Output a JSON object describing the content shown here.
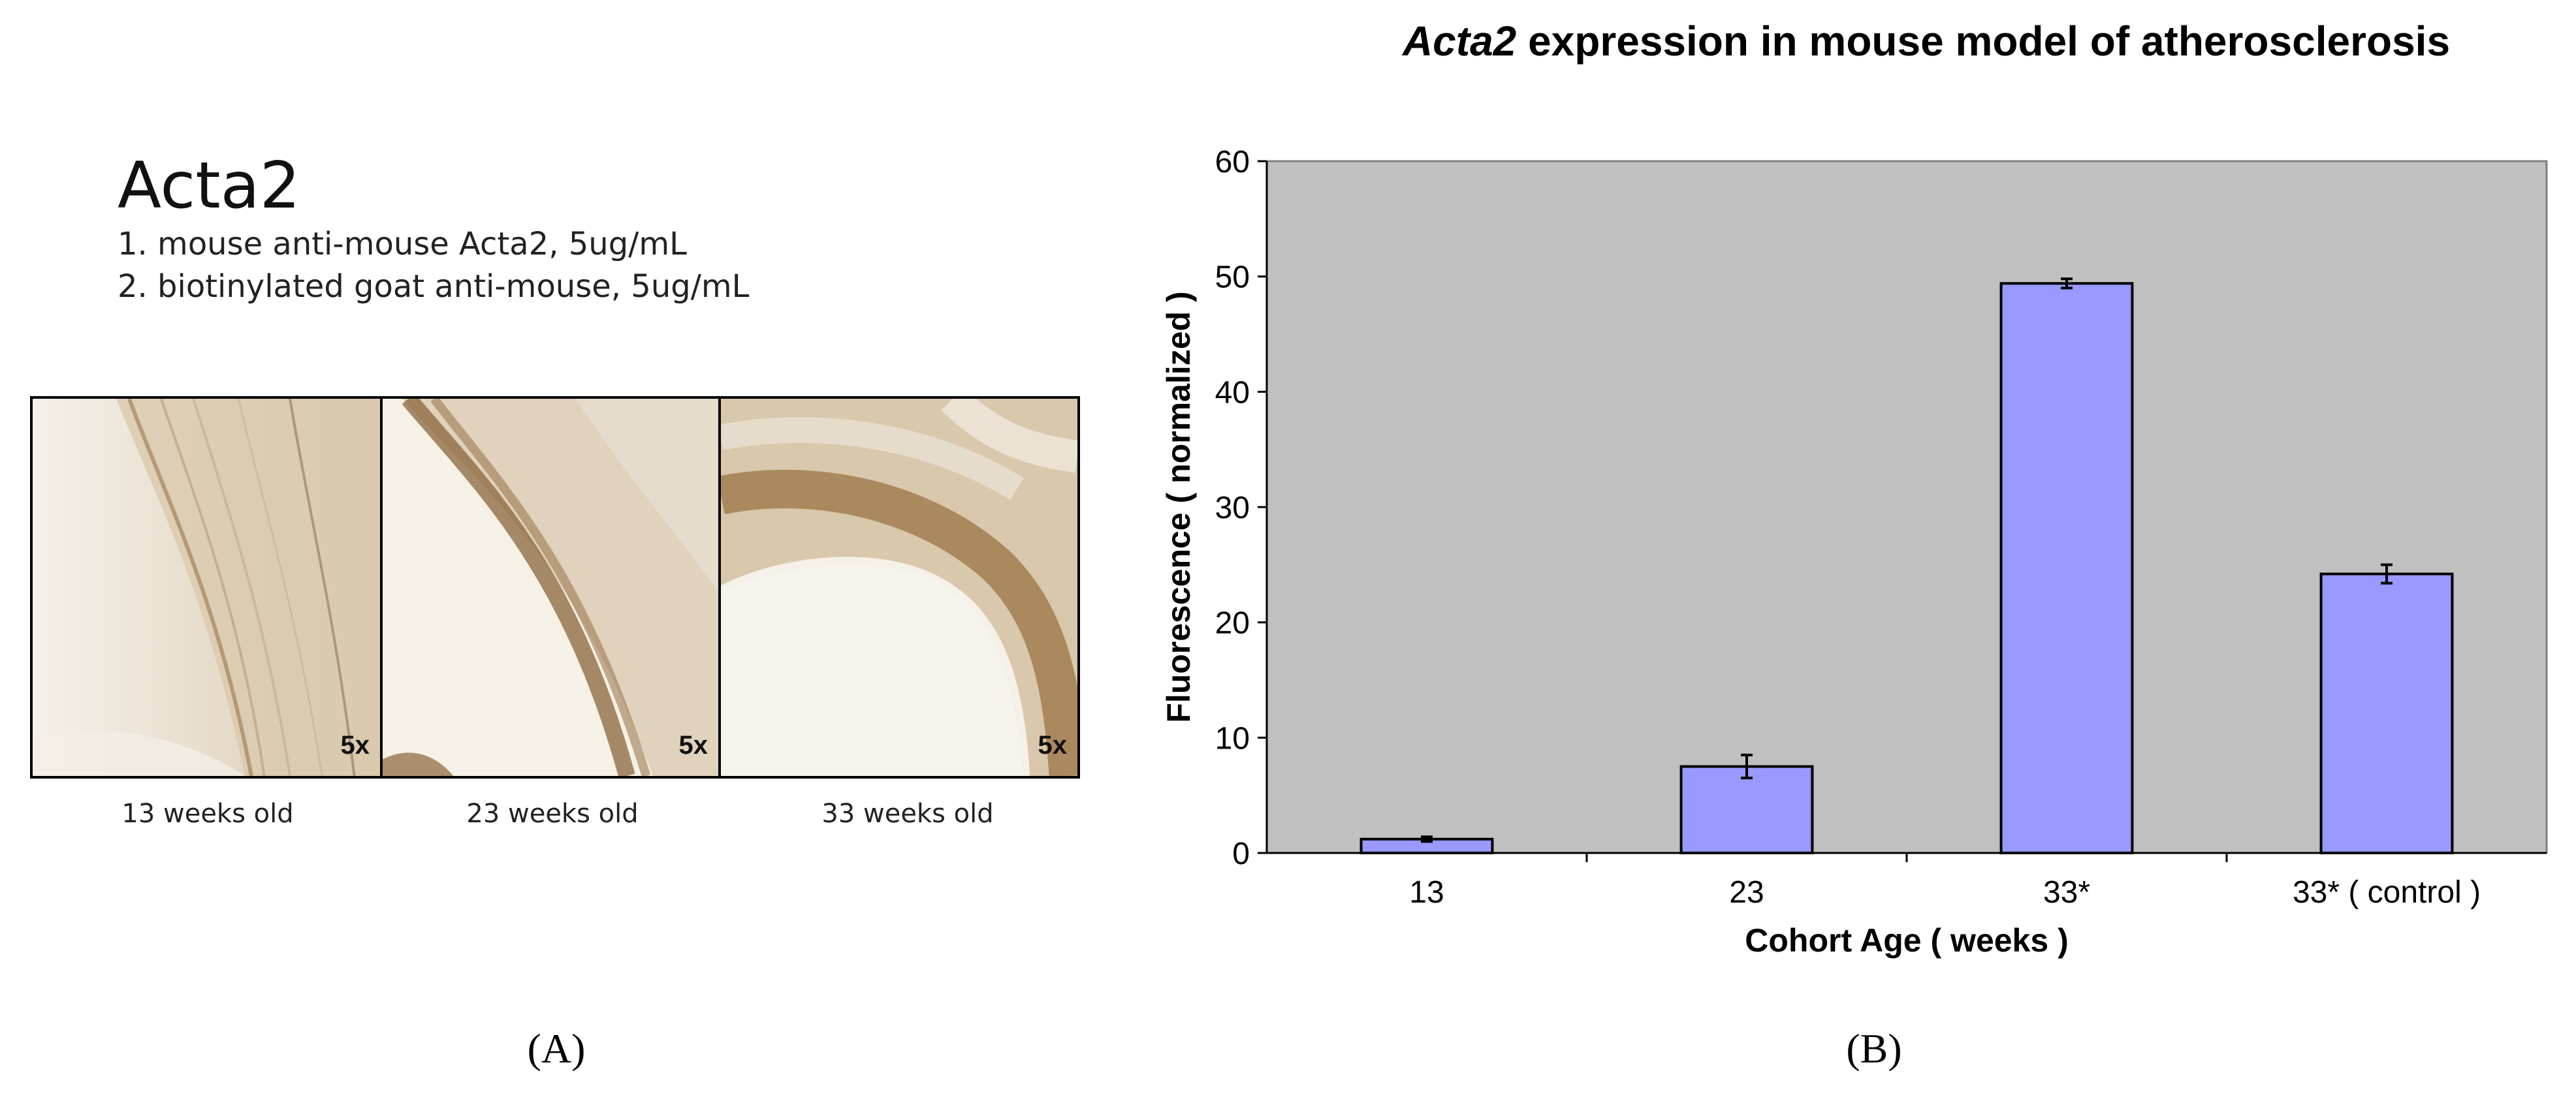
{
  "panel_a": {
    "title": "Acta2",
    "steps": [
      "1. mouse anti-mouse Acta2, 5ug/mL",
      "2. biotinylated goat anti-mouse, 5ug/mL"
    ],
    "images": [
      {
        "magnification": "5x",
        "caption": "13 weeks old"
      },
      {
        "magnification": "5x",
        "caption": "23 weeks old"
      },
      {
        "magnification": "5x",
        "caption": "33 weeks old"
      }
    ],
    "label": "(A)"
  },
  "panel_b": {
    "label": "(B)"
  },
  "chart_data": {
    "type": "bar",
    "title_italic": "Acta2",
    "title_rest": " expression in mouse model of atherosclerosis",
    "xlabel": "Cohort Age ( weeks )",
    "ylabel": "Fluorescence ( normalized )",
    "categories": [
      "13",
      "23",
      "33*",
      "33* ( control )"
    ],
    "values": [
      1.2,
      7.5,
      49.4,
      24.2
    ],
    "errors": [
      0.2,
      1.0,
      0.4,
      0.8
    ],
    "ylim": [
      0,
      60
    ],
    "yticks": [
      0,
      10,
      20,
      30,
      40,
      50,
      60
    ],
    "grid": false,
    "colors": {
      "bar": "#9999ff",
      "plot_bg": "#c0c0c0",
      "bar_edge": "#000000"
    }
  }
}
